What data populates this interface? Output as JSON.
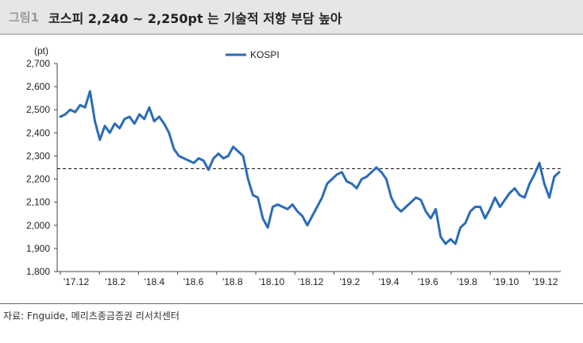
{
  "header": {
    "figure_label": "그림1",
    "title": "코스피 2,240 ~ 2,250pt 는 기술적 저항 부담 높아"
  },
  "footer": {
    "source": "자료: Fnguide, 메리츠종금증권 리서치센터"
  },
  "colors": {
    "series": "#2b6cb8",
    "reference": "#222222",
    "header_bg": "#e6e6e6"
  },
  "chart_data": {
    "type": "line",
    "title": "",
    "xlabel": "",
    "ylabel": "(pt)",
    "ylim": [
      1800,
      2700
    ],
    "yticks": [
      1800,
      1900,
      2000,
      2100,
      2200,
      2300,
      2400,
      2500,
      2600,
      2700
    ],
    "ytick_labels": [
      "1,800",
      "1,900",
      "2,000",
      "2,100",
      "2,200",
      "2,300",
      "2,400",
      "2,500",
      "2,600",
      "2,700"
    ],
    "xticks": [
      "'17.12",
      "'18.2",
      "'18.4",
      "'18.6",
      "'18.8",
      "'18.10",
      "'18.12",
      "'19.2",
      "'19.4",
      "'19.6",
      "'19.8",
      "'19.10",
      "'19.12"
    ],
    "grid": false,
    "legend": "top-center",
    "reference_line": {
      "value": 2245,
      "style": "dashed"
    },
    "series": [
      {
        "name": "KOSPI",
        "x": [
          "'17.12",
          "'17.12",
          "'18.1",
          "'18.1",
          "'18.1",
          "'18.1",
          "'18.1",
          "'18.2",
          "'18.2",
          "'18.2",
          "'18.2",
          "'18.3",
          "'18.3",
          "'18.3",
          "'18.3",
          "'18.4",
          "'18.4",
          "'18.4",
          "'18.4",
          "'18.5",
          "'18.5",
          "'18.5",
          "'18.5",
          "'18.6",
          "'18.6",
          "'18.6",
          "'18.6",
          "'18.7",
          "'18.7",
          "'18.7",
          "'18.7",
          "'18.8",
          "'18.8",
          "'18.8",
          "'18.8",
          "'18.9",
          "'18.9",
          "'18.9",
          "'18.10",
          "'18.10",
          "'18.10",
          "'18.10",
          "'18.10",
          "'18.11",
          "'18.11",
          "'18.11",
          "'18.11",
          "'18.12",
          "'18.12",
          "'18.12",
          "'18.12",
          "'19.1",
          "'19.1",
          "'19.1",
          "'19.1",
          "'19.2",
          "'19.2",
          "'19.2",
          "'19.2",
          "'19.3",
          "'19.3",
          "'19.3",
          "'19.3",
          "'19.4",
          "'19.4",
          "'19.4",
          "'19.4",
          "'19.5",
          "'19.5",
          "'19.5",
          "'19.5",
          "'19.6",
          "'19.6",
          "'19.6",
          "'19.6",
          "'19.7",
          "'19.7",
          "'19.7",
          "'19.7",
          "'19.8",
          "'19.8",
          "'19.8",
          "'19.8",
          "'19.9",
          "'19.9",
          "'19.9",
          "'19.9",
          "'19.10",
          "'19.10",
          "'19.10",
          "'19.10",
          "'19.11",
          "'19.11",
          "'19.11",
          "'19.11",
          "'19.12",
          "'19.12",
          "'19.12",
          "'19.12",
          "'19.12",
          "'20.1",
          "'20.1"
        ],
        "values": [
          2470,
          2480,
          2500,
          2490,
          2520,
          2510,
          2580,
          2450,
          2370,
          2430,
          2400,
          2440,
          2420,
          2460,
          2470,
          2440,
          2480,
          2460,
          2510,
          2450,
          2470,
          2440,
          2400,
          2330,
          2300,
          2290,
          2280,
          2270,
          2290,
          2280,
          2240,
          2290,
          2310,
          2290,
          2300,
          2340,
          2320,
          2300,
          2200,
          2130,
          2120,
          2030,
          1990,
          2080,
          2090,
          2080,
          2070,
          2090,
          2060,
          2040,
          2000,
          2040,
          2080,
          2120,
          2180,
          2200,
          2220,
          2230,
          2190,
          2180,
          2160,
          2200,
          2210,
          2230,
          2250,
          2230,
          2200,
          2120,
          2080,
          2060,
          2080,
          2100,
          2120,
          2110,
          2060,
          2030,
          2070,
          1950,
          1920,
          1940,
          1920,
          1990,
          2010,
          2060,
          2080,
          2080,
          2030,
          2070,
          2120,
          2080,
          2110,
          2140,
          2160,
          2130,
          2120,
          2180,
          2220,
          2270,
          2180,
          2120,
          2210,
          2230
        ]
      }
    ]
  }
}
